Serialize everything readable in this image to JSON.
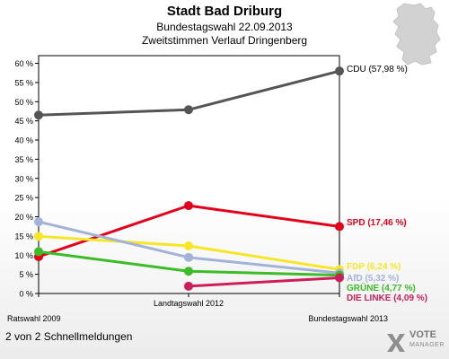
{
  "header": {
    "title": "Stadt Bad Driburg",
    "subtitle1": "Bundestagswahl 22.09.2013",
    "subtitle2": "Zweitstimmen Verlauf Dringenberg"
  },
  "footer": {
    "text": "2 von 2 Schnellmeldungen"
  },
  "brand": {
    "line1": "VOTE",
    "line2": "MANAGER"
  },
  "chart_data": {
    "type": "line",
    "categories": [
      "Ratswahl 2009",
      "Landtagswahl 2012",
      "Bundestagswahl 2013"
    ],
    "ylim": [
      0,
      62
    ],
    "yticks": [
      0,
      5,
      10,
      15,
      20,
      25,
      30,
      35,
      40,
      45,
      50,
      55,
      60
    ],
    "ytick_labels": [
      "0 %",
      "5 %",
      "10 %",
      "15 %",
      "20 %",
      "25 %",
      "30 %",
      "35 %",
      "40 %",
      "45 %",
      "50 %",
      "55 %",
      "60 %"
    ],
    "grid": false,
    "series": [
      {
        "name": "CDU",
        "color": "#555555",
        "values": [
          46.5,
          47.9,
          57.98
        ],
        "end_label": "CDU (57,98 %)"
      },
      {
        "name": "SPD",
        "color": "#e2001a",
        "values": [
          9.6,
          22.9,
          17.46
        ],
        "end_label": "SPD (17,46 %)"
      },
      {
        "name": "FDP",
        "color": "#f7e627",
        "values": [
          14.9,
          12.4,
          6.24
        ],
        "end_label": "FDP (6,24 %)"
      },
      {
        "name": "AfD",
        "color": "#a3b3d8",
        "values": [
          18.7,
          9.4,
          5.32
        ],
        "end_label": "AfD (5,32 %)"
      },
      {
        "name": "GRÜNE",
        "color": "#3cbc27",
        "values": [
          10.9,
          5.8,
          4.77
        ],
        "end_label": "GRÜNE (4,77 %)"
      },
      {
        "name": "DIE LINKE",
        "color": "#cc1e5b",
        "values": [
          null,
          1.9,
          4.09
        ],
        "end_label": "DIE LINKE (4,09 %)"
      }
    ]
  },
  "colors": {
    "axis": "#000000"
  },
  "icons": {
    "map": "germany-map-icon",
    "logo": "vote-manager-logo-icon"
  }
}
